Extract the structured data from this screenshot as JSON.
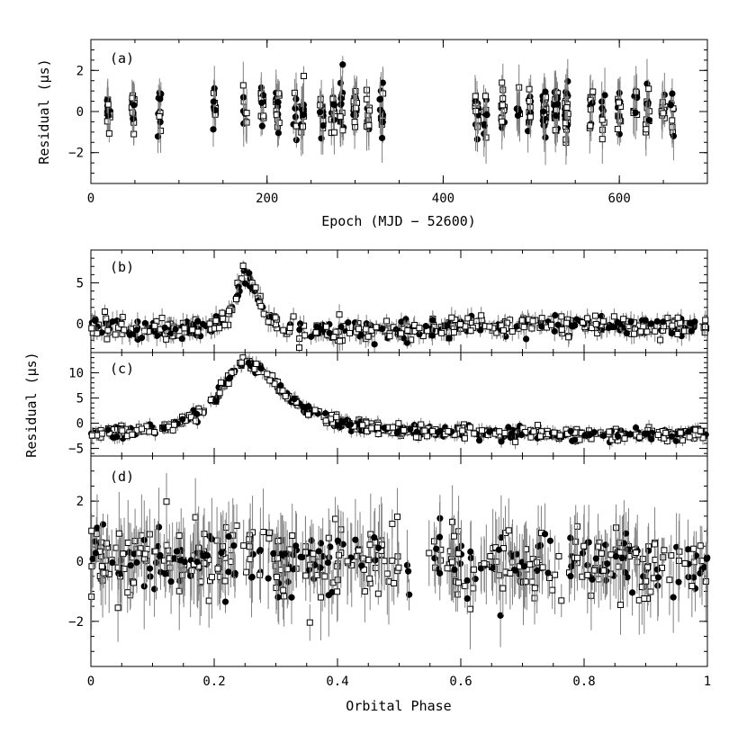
{
  "chart_data": [
    {
      "panel": "a",
      "type": "scatter",
      "tag": "(a)",
      "xlabel": "Epoch (MJD − 52600)",
      "ylabel": "Residual (μs)",
      "xlim": [
        0,
        700
      ],
      "ylim": [
        -3.5,
        3.5
      ],
      "xticks": [
        0,
        200,
        400,
        600
      ],
      "xtick_labels": [
        "0",
        "200",
        "400",
        "600"
      ],
      "yticks": [
        -2,
        0,
        2
      ],
      "ytick_labels": [
        "−2",
        "0",
        "2"
      ],
      "epoch_clusters": [
        20,
        48,
        78,
        140,
        175,
        195,
        212,
        232,
        240,
        262,
        275,
        285,
        300,
        315,
        330,
        438,
        448,
        468,
        485,
        498,
        515,
        528,
        540,
        568,
        582,
        600,
        618,
        632,
        650,
        660
      ],
      "typical_scatter_us": 0.6
    },
    {
      "panel": "b",
      "type": "scatter",
      "tag": "(b)",
      "xlim": [
        0,
        1
      ],
      "ylim": [
        -3.5,
        9
      ],
      "yticks": [
        0,
        5
      ],
      "ytick_labels": [
        "0",
        "5"
      ],
      "peak_phase": 0.25,
      "peak_value_us": 6.6,
      "baseline_us": -0.6
    },
    {
      "panel": "c",
      "type": "scatter",
      "tag": "(c)",
      "ylabel": "Residual (μs)",
      "xlim": [
        0,
        1
      ],
      "ylim": [
        -6.5,
        14
      ],
      "yticks": [
        -5,
        0,
        5,
        10
      ],
      "ytick_labels": [
        "−5",
        "0",
        "5",
        "10"
      ],
      "peak_phase": 0.25,
      "peak_value_us": 12.0,
      "baseline_us": -2.5
    },
    {
      "panel": "d",
      "type": "scatter",
      "tag": "(d)",
      "xlabel": "Orbital Phase",
      "ylabel": "",
      "xlim": [
        0,
        1
      ],
      "ylim": [
        -3.5,
        3.5
      ],
      "xticks": [
        0,
        0.2,
        0.4,
        0.6,
        0.8,
        1
      ],
      "xtick_labels": [
        "0",
        "0.2",
        "0.4",
        "0.6",
        "0.8",
        "1"
      ],
      "yticks": [
        -2,
        0,
        2
      ],
      "ytick_labels": [
        "−2",
        "0",
        "2"
      ],
      "typical_scatter_us": 0.6
    }
  ],
  "legend": {
    "series": [
      {
        "marker": "filled-circle",
        "color": "#000000"
      },
      {
        "marker": "open-square",
        "color": "#000000"
      }
    ]
  },
  "colors": {
    "axes": "#000000",
    "errorbar": "#808080",
    "background": "#ffffff"
  }
}
